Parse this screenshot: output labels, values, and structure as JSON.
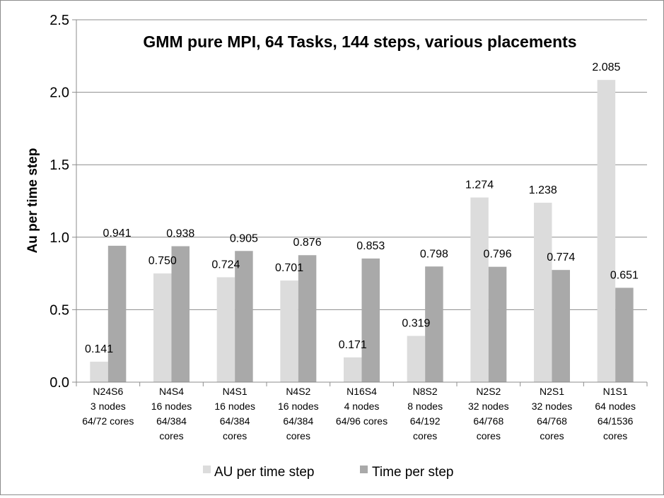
{
  "chart_data": {
    "type": "bar",
    "title": "GMM pure MPI, 64 Tasks, 144 steps, various placements",
    "xlabel": "",
    "ylabel": "Au per time step",
    "ylim": [
      0,
      2.5
    ],
    "yticks": [
      "0.0",
      "0.5",
      "1.0",
      "1.5",
      "2.0",
      "2.5"
    ],
    "grid": "horizontal",
    "legend_position": "bottom",
    "categories": [
      [
        "N24S6",
        "3 nodes",
        "64/72 cores"
      ],
      [
        "N4S4",
        "16 nodes",
        "64/384",
        "cores"
      ],
      [
        "N4S1",
        "16 nodes",
        "64/384",
        "cores"
      ],
      [
        "N4S2",
        "16 nodes",
        "64/384",
        "cores"
      ],
      [
        "N16S4",
        "4 nodes",
        "64/96 cores"
      ],
      [
        "N8S2",
        "8 nodes",
        "64/192",
        "cores"
      ],
      [
        "N2S2",
        "32 nodes",
        "64/768",
        "cores"
      ],
      [
        "N2S1",
        "32 nodes",
        "64/768",
        "cores"
      ],
      [
        "N1S1",
        "64 nodes",
        "64/1536",
        "cores"
      ]
    ],
    "series": [
      {
        "name": "AU per time step",
        "color": "#dcdcdc",
        "values": [
          0.141,
          0.75,
          0.724,
          0.701,
          0.171,
          0.319,
          1.274,
          1.238,
          2.085
        ],
        "labels": [
          "0.141",
          "0.750",
          "0.724",
          "0.701",
          "0.171",
          "0.319",
          "1.274",
          "1.238",
          "2.085"
        ]
      },
      {
        "name": "Time per step",
        "color": "#a9a9a9",
        "values": [
          0.941,
          0.938,
          0.905,
          0.876,
          0.853,
          0.798,
          0.796,
          0.774,
          0.651
        ],
        "labels": [
          "0.941",
          "0.938",
          "0.905",
          "0.876",
          "0.853",
          "0.798",
          "0.796",
          "0.774",
          "0.651"
        ]
      }
    ]
  }
}
